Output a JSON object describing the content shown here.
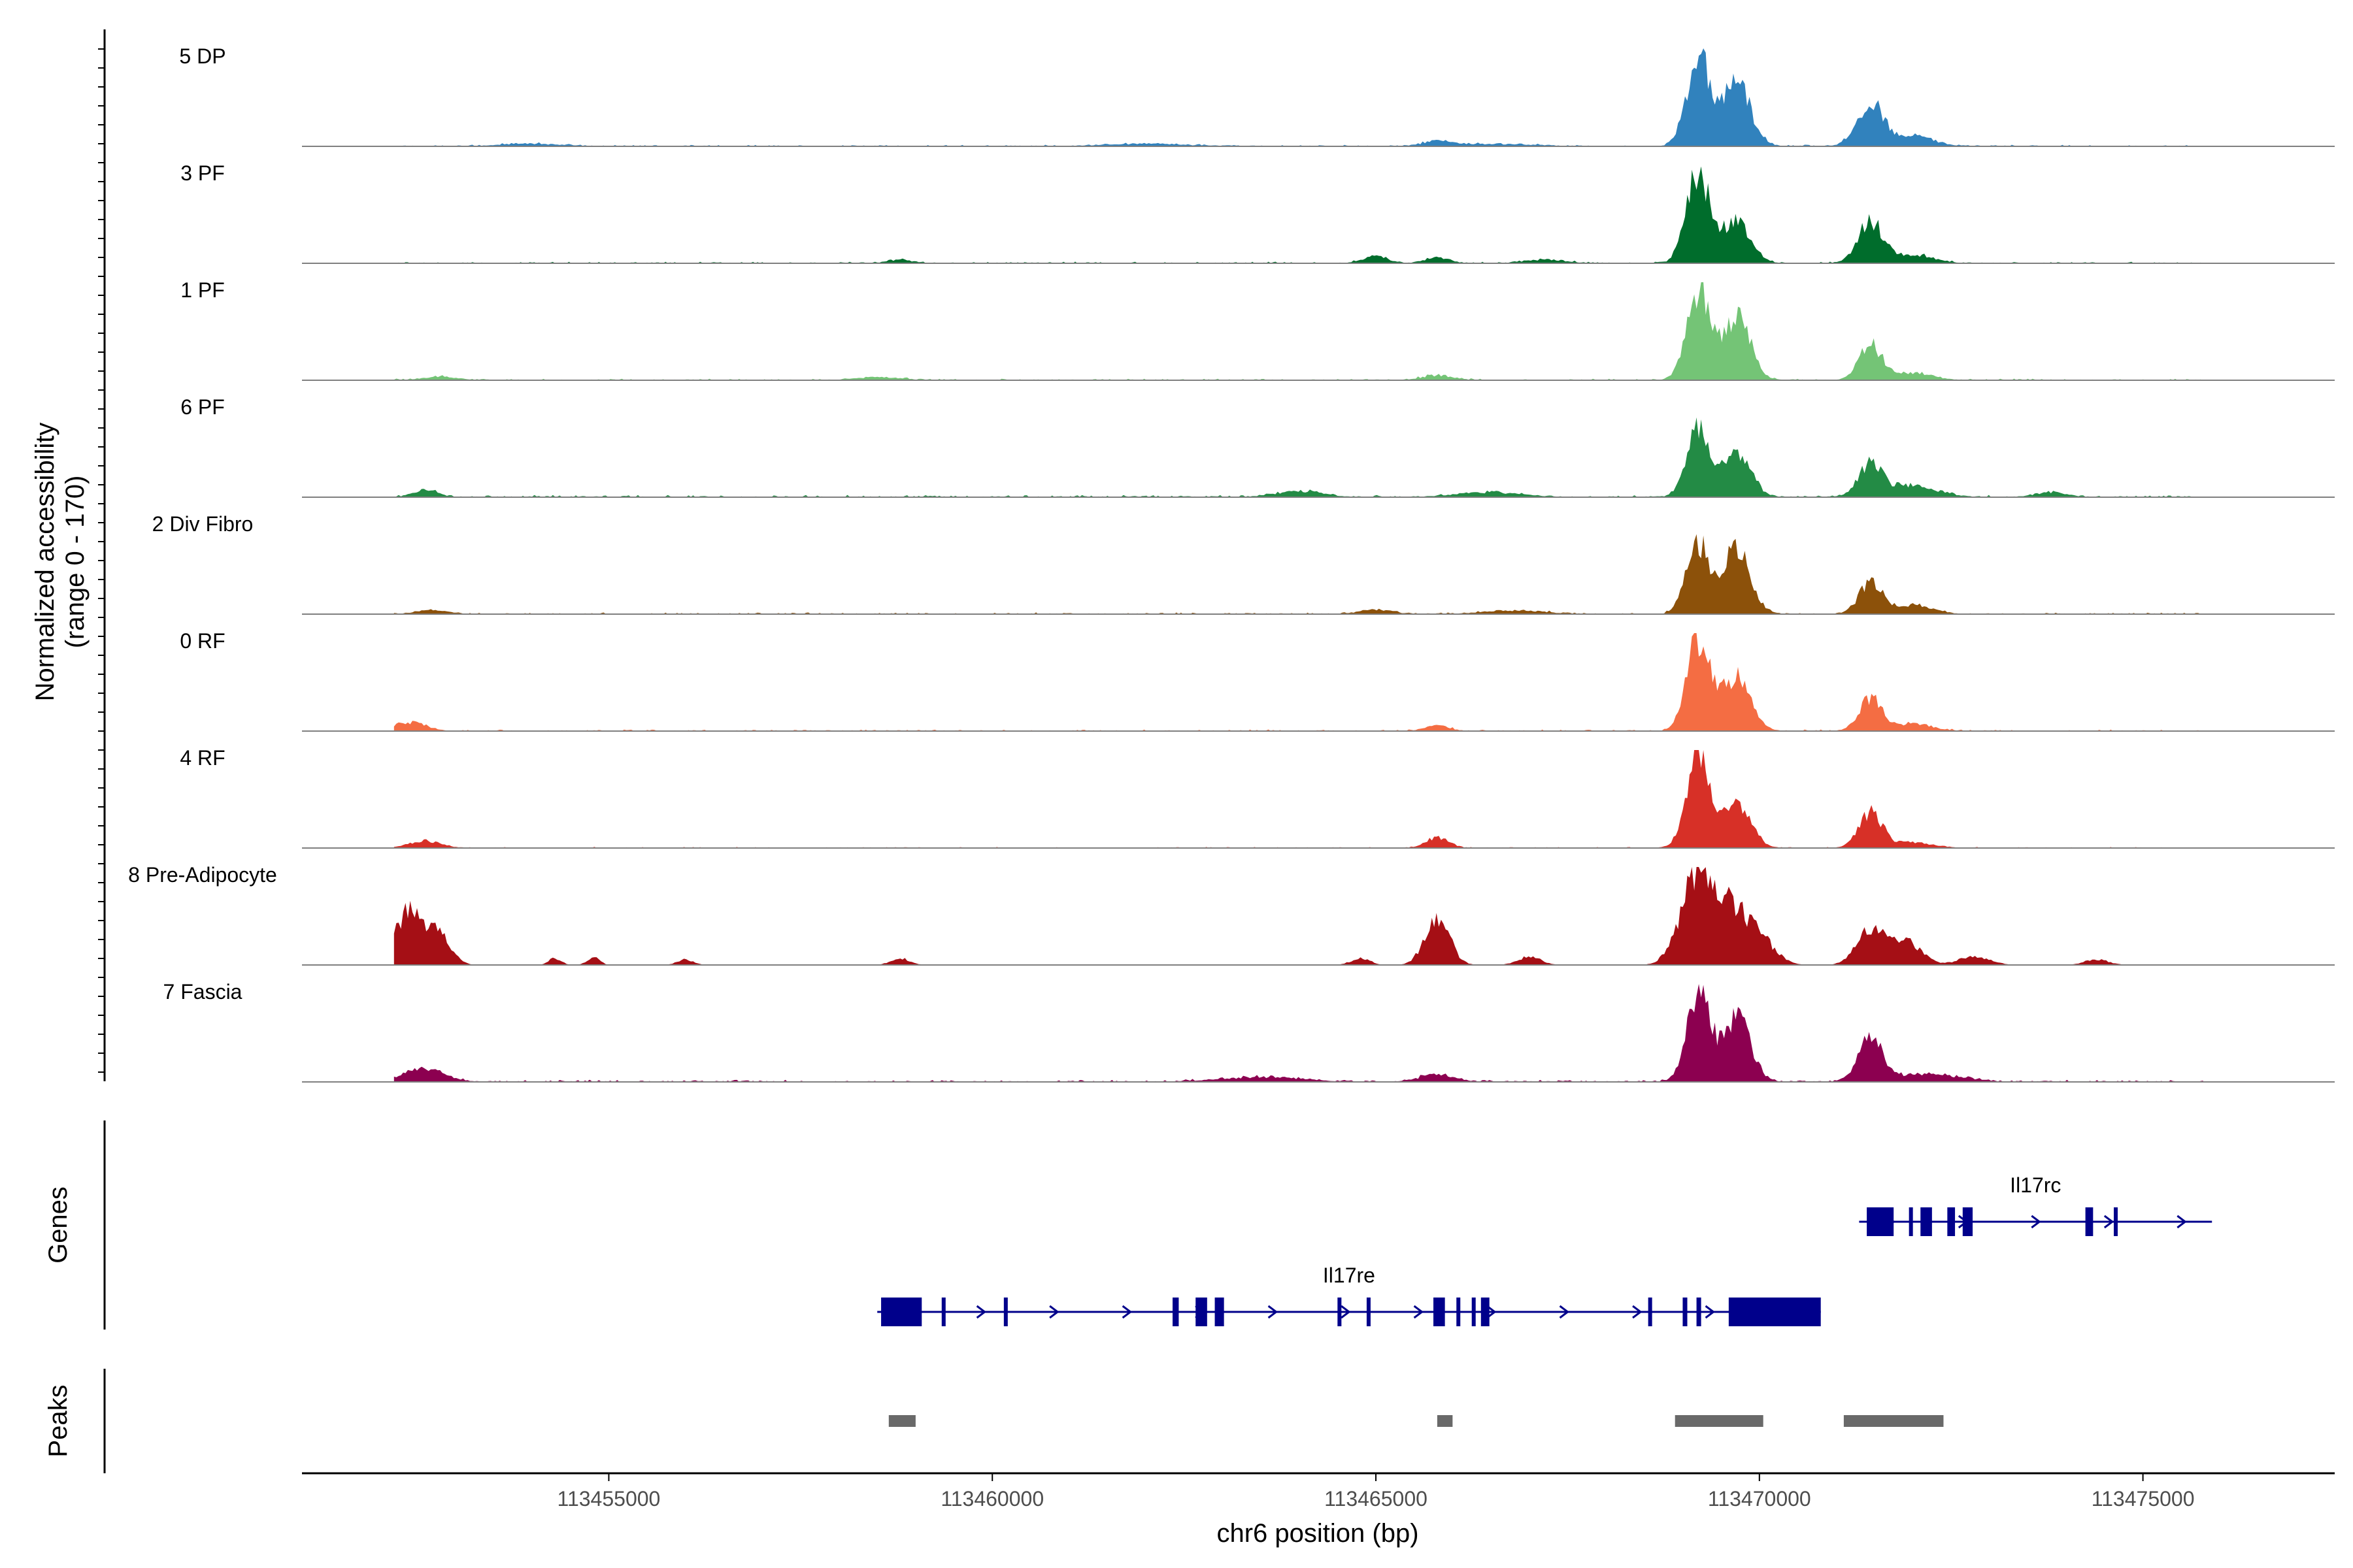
{
  "chart_data": {
    "type": "area",
    "title": "",
    "ylabel": "Normalized accessibility",
    "ylabel_range": "(range 0 - 170)",
    "yrange": [
      0,
      170
    ],
    "xlabel": "chr6 position (bp)",
    "xlim": [
      113451000,
      113477500
    ],
    "xticks": [
      113455000,
      113460000,
      113465000,
      113470000,
      113475000
    ],
    "xtick_labels": [
      "113455000",
      "113460000",
      "113465000",
      "113470000",
      "113475000"
    ],
    "signal_extent": [
      113452200,
      113475800
    ],
    "tracks": [
      {
        "name": "5 DP",
        "color": "#3182bd",
        "peaks": [
          [
            113469200,
            155,
            150
          ],
          [
            113469700,
            110,
            180
          ],
          [
            113471450,
            75,
            170
          ],
          [
            113465800,
            10,
            150
          ],
          [
            113454000,
            4,
            400
          ],
          [
            113462000,
            4,
            500
          ],
          [
            113472000,
            18,
            250
          ],
          [
            113466500,
            4,
            500
          ]
        ],
        "noise": 3
      },
      {
        "name": "3 PF",
        "color": "#006d2c",
        "peaks": [
          [
            113469200,
            155,
            150
          ],
          [
            113469700,
            75,
            180
          ],
          [
            113471450,
            72,
            160
          ],
          [
            113465000,
            12,
            150
          ],
          [
            113465800,
            10,
            150
          ],
          [
            113467200,
            6,
            250
          ],
          [
            113458800,
            6,
            150
          ],
          [
            113472000,
            15,
            250
          ]
        ],
        "noise": 3
      },
      {
        "name": "1 PF",
        "color": "#74c476",
        "peaks": [
          [
            113469200,
            155,
            150
          ],
          [
            113469700,
            110,
            180
          ],
          [
            113471450,
            60,
            150
          ],
          [
            113452800,
            6,
            200
          ],
          [
            113465800,
            8,
            200
          ],
          [
            113458500,
            5,
            300
          ],
          [
            113472000,
            12,
            250
          ]
        ],
        "noise": 3
      },
      {
        "name": "6 PF",
        "color": "#238b45",
        "peaks": [
          [
            113469200,
            115,
            150
          ],
          [
            113469700,
            80,
            180
          ],
          [
            113471450,
            55,
            150
          ],
          [
            113452600,
            12,
            150
          ],
          [
            113464000,
            10,
            300
          ],
          [
            113466500,
            8,
            400
          ],
          [
            113472000,
            20,
            300
          ],
          [
            113473800,
            8,
            200
          ]
        ],
        "noise": 4
      },
      {
        "name": "2 Div Fibro",
        "color": "#8c510a",
        "peaks": [
          [
            113469200,
            120,
            150
          ],
          [
            113469700,
            110,
            180
          ],
          [
            113471450,
            55,
            150
          ],
          [
            113465000,
            8,
            200
          ],
          [
            113466800,
            6,
            400
          ],
          [
            113452700,
            6,
            200
          ],
          [
            113472000,
            15,
            250
          ]
        ],
        "noise": 3
      },
      {
        "name": "0 RF",
        "color": "#f46d43",
        "peaks": [
          [
            113469200,
            160,
            150
          ],
          [
            113469700,
            95,
            180
          ],
          [
            113471450,
            55,
            150
          ],
          [
            113452400,
            15,
            200
          ],
          [
            113465800,
            10,
            150
          ],
          [
            113472000,
            12,
            250
          ]
        ],
        "noise": 3
      },
      {
        "name": "4 RF",
        "color": "#d73027",
        "peaks": [
          [
            113469200,
            160,
            150
          ],
          [
            113469700,
            80,
            180
          ],
          [
            113471450,
            60,
            150
          ],
          [
            113452600,
            12,
            200
          ],
          [
            113465800,
            18,
            150
          ],
          [
            113472000,
            10,
            250
          ]
        ],
        "noise": 2
      },
      {
        "name": "8 Pre-Adipocyte",
        "color": "#a50f15",
        "peaks": [
          [
            113452400,
            95,
            180
          ],
          [
            113452800,
            50,
            150
          ],
          [
            113465800,
            80,
            160
          ],
          [
            113469200,
            155,
            180
          ],
          [
            113469600,
            100,
            200
          ],
          [
            113470000,
            45,
            200
          ],
          [
            113471450,
            60,
            180
          ],
          [
            113471900,
            40,
            200
          ],
          [
            113472800,
            15,
            200
          ],
          [
            113454300,
            12,
            80
          ],
          [
            113454800,
            14,
            80
          ],
          [
            113456000,
            10,
            100
          ],
          [
            113458800,
            12,
            120
          ],
          [
            113464800,
            12,
            120
          ],
          [
            113467000,
            14,
            150
          ],
          [
            113468900,
            20,
            150
          ],
          [
            113474400,
            10,
            150
          ]
        ],
        "noise": 0
      },
      {
        "name": "7 Fascia",
        "color": "#8c0050",
        "peaks": [
          [
            113469200,
            150,
            150
          ],
          [
            113469700,
            110,
            180
          ],
          [
            113471450,
            75,
            150
          ],
          [
            113452600,
            22,
            250
          ],
          [
            113465800,
            14,
            200
          ],
          [
            113463500,
            8,
            500
          ],
          [
            113472200,
            14,
            400
          ]
        ],
        "noise": 4
      }
    ],
    "genes": [
      {
        "name": "Il17rc",
        "start": 113471300,
        "end": 113475900,
        "strand": "+",
        "exons": [
          [
            113471400,
            113471750
          ],
          [
            113471950,
            113471980
          ],
          [
            113472100,
            113472250
          ],
          [
            113472450,
            113472550
          ],
          [
            113472650,
            113472780
          ],
          [
            113474250,
            113474350
          ],
          [
            113474620,
            113474650
          ]
        ]
      },
      {
        "name": "Il17re",
        "start": 113458500,
        "end": 113470800,
        "strand": "+",
        "exons": [
          [
            113458550,
            113459080
          ],
          [
            113459340,
            113459360
          ],
          [
            113460150,
            113460200
          ],
          [
            113462350,
            113462430
          ],
          [
            113462650,
            113462800
          ],
          [
            113462900,
            113463020
          ],
          [
            113464500,
            113464540
          ],
          [
            113464880,
            113464920
          ],
          [
            113465750,
            113465900
          ],
          [
            113466050,
            113466090
          ],
          [
            113466250,
            113466300
          ],
          [
            113466370,
            113466480
          ],
          [
            113468550,
            113468600
          ],
          [
            113469000,
            113469060
          ],
          [
            113469180,
            113469240
          ],
          [
            113469600,
            113470800
          ]
        ]
      }
    ],
    "peaks_track": [
      [
        113458650,
        113459000
      ],
      [
        113465800,
        113466000
      ],
      [
        113468900,
        113470050
      ],
      [
        113471100,
        113472400
      ]
    ],
    "panel_labels": {
      "genes": "Genes",
      "peaks": "Peaks"
    },
    "colors": {
      "axis": "#000000",
      "baseline": "#7f7f7f",
      "gene": "#00008b",
      "peak_box": "#696969"
    }
  }
}
